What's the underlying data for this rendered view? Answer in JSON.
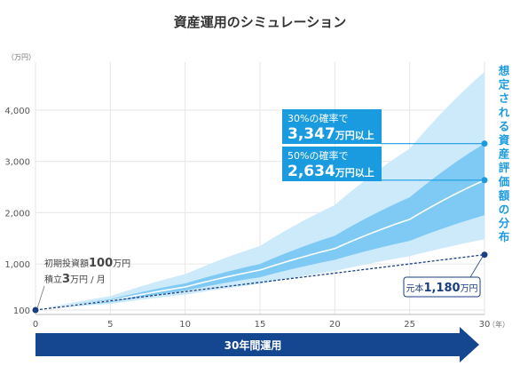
{
  "chart_data": {
    "type": "area",
    "title": "資産運用のシミュレーション",
    "y_unit": "（万円）",
    "x_unit": "（年）",
    "xlim": [
      0,
      30
    ],
    "ylim": [
      100,
      4800
    ],
    "x_ticks": [
      0,
      5,
      10,
      15,
      20,
      25,
      30
    ],
    "y_ticks": [
      {
        "value": 100,
        "label": "100"
      },
      {
        "value": 1000,
        "label": "1,000"
      },
      {
        "value": 2000,
        "label": "2,000"
      },
      {
        "value": 3000,
        "label": "3,000"
      },
      {
        "value": 4000,
        "label": "4,000"
      }
    ],
    "grid": true,
    "distribution_label": "想定される資産評価額の分布",
    "x": [
      0,
      5,
      10,
      15,
      20,
      25,
      30
    ],
    "series": [
      {
        "role": "outer_upper",
        "values": [
          100,
          370,
          800,
          1350,
          2150,
          3250,
          4750
        ]
      },
      {
        "role": "inner_upper",
        "values": [
          100,
          310,
          620,
          1000,
          1550,
          2300,
          3350
        ]
      },
      {
        "role": "median",
        "values": [
          100,
          280,
          550,
          880,
          1300,
          1870,
          2634
        ]
      },
      {
        "role": "inner_lower",
        "values": [
          100,
          250,
          480,
          740,
          1080,
          1450,
          1950
        ]
      },
      {
        "role": "outer_lower",
        "values": [
          100,
          220,
          400,
          610,
          860,
          1150,
          1480
        ]
      },
      {
        "role": "principal",
        "values": [
          100,
          280,
          460,
          640,
          820,
          1000,
          1180
        ]
      }
    ],
    "callouts": [
      {
        "id": "p30",
        "year": 30,
        "value": 3347,
        "line1": "30%の確率で",
        "num": "3,347",
        "suffix": "万円以上"
      },
      {
        "id": "p50",
        "year": 30,
        "value": 2634,
        "line1": "50%の確率で",
        "num": "2,634",
        "suffix": "万円以上"
      }
    ],
    "start_annotation": {
      "line1_a": "初期投資額",
      "line1_b": "100",
      "line1_c": "万円",
      "line2_a": "積立",
      "line2_b": "3",
      "line2_c": "万円 / 月"
    },
    "principal_label": {
      "a": "元本",
      "b": "1,180",
      "c": "万円"
    },
    "period_label": "30年間運用"
  },
  "colors": {
    "outer_band": "#cdeafb",
    "inner_band": "#7fcaf4",
    "median_line": "#ffffff",
    "principal_line": "#1a3f80",
    "callout_bg": "#1a9be0",
    "accent_text": "#1a9be0",
    "arrow": "#14478f",
    "grid": "#e6e6e6"
  }
}
